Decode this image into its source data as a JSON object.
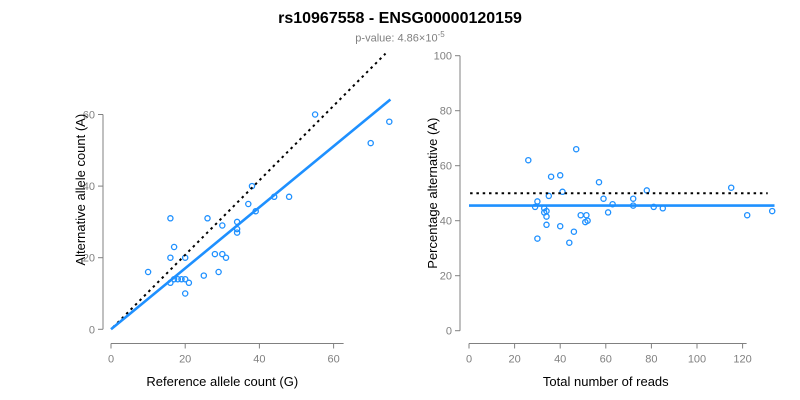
{
  "header": {
    "title": "rs10967558 - ENSG00000120159",
    "pvalue_prefix": "p-value: 4.86×10",
    "pvalue_exponent": "-5"
  },
  "colors": {
    "point_blue": "#1e90ff",
    "fit_line_blue": "#1e90ff",
    "expected_line_black": "#000000",
    "axis_gray": "#808080",
    "tick_label_gray": "#808080",
    "axis_title_black": "#000000",
    "subtitle_gray": "#808080"
  },
  "chart_data": [
    {
      "type": "scatter",
      "name": "allele-count-plot",
      "xlabel": "Reference allele count (G)",
      "ylabel": "Alternative allele count (A)",
      "xlim": [
        0,
        76
      ],
      "ylim": [
        0,
        78
      ],
      "xticks": [
        0,
        20,
        40,
        60
      ],
      "yticks": [
        0,
        20,
        40,
        60
      ],
      "grid": false,
      "legend": "none",
      "points": [
        [
          55,
          60
        ],
        [
          75,
          58
        ],
        [
          70,
          52
        ],
        [
          38,
          40
        ],
        [
          44,
          37
        ],
        [
          48,
          37
        ],
        [
          37,
          35
        ],
        [
          39,
          33
        ],
        [
          16,
          31
        ],
        [
          26,
          31
        ],
        [
          34,
          30
        ],
        [
          30,
          29
        ],
        [
          34,
          28
        ],
        [
          34,
          27
        ],
        [
          17,
          23
        ],
        [
          28,
          21
        ],
        [
          30,
          21
        ],
        [
          31,
          20
        ],
        [
          16,
          20
        ],
        [
          20,
          20
        ],
        [
          10,
          16
        ],
        [
          29,
          16
        ],
        [
          25,
          15
        ],
        [
          17,
          14
        ],
        [
          18,
          14
        ],
        [
          19,
          14
        ],
        [
          20,
          14
        ],
        [
          16,
          13
        ],
        [
          21,
          13
        ],
        [
          20,
          10
        ]
      ],
      "lines": [
        {
          "name": "expected-line",
          "style": "dotted",
          "color": "#000000",
          "points": [
            [
              0.5,
              0.5
            ],
            [
              74,
              77
            ]
          ]
        },
        {
          "name": "fit-line",
          "style": "solid",
          "color": "#1e90ff",
          "points": [
            [
              0,
              0
            ],
            [
              75.3,
              64.2
            ]
          ]
        }
      ]
    },
    {
      "type": "scatter",
      "name": "percentage-plot",
      "xlabel": "Total number of reads",
      "ylabel": "Percentage alternative (A)",
      "xlim": [
        0,
        134
      ],
      "ylim": [
        0,
        100
      ],
      "xticks": [
        0,
        20,
        40,
        60,
        80,
        100,
        120
      ],
      "yticks": [
        0,
        20,
        40,
        60,
        80,
        100
      ],
      "grid": false,
      "legend": "none",
      "points": [
        [
          26,
          62
        ],
        [
          47,
          66
        ],
        [
          36,
          56
        ],
        [
          40,
          56.5
        ],
        [
          57,
          54
        ],
        [
          41,
          50.5
        ],
        [
          35,
          49
        ],
        [
          78,
          51
        ],
        [
          115,
          52
        ],
        [
          59,
          48
        ],
        [
          72,
          48
        ],
        [
          30,
          47
        ],
        [
          63,
          46
        ],
        [
          29,
          45
        ],
        [
          33,
          44.5
        ],
        [
          34,
          43.5
        ],
        [
          33,
          43
        ],
        [
          61,
          43
        ],
        [
          72,
          45.5
        ],
        [
          81,
          45
        ],
        [
          85,
          44.5
        ],
        [
          34,
          41.5
        ],
        [
          49,
          42
        ],
        [
          51.5,
          42
        ],
        [
          52,
          40
        ],
        [
          51,
          39.5
        ],
        [
          34,
          38.5
        ],
        [
          40,
          38
        ],
        [
          46,
          36
        ],
        [
          30,
          33.5
        ],
        [
          44,
          32
        ],
        [
          122,
          42
        ],
        [
          133,
          43.5
        ]
      ],
      "lines": [
        {
          "name": "expected-line",
          "style": "dotted",
          "color": "#000000",
          "points": [
            [
              0.5,
              50
            ],
            [
              131,
              50
            ]
          ]
        },
        {
          "name": "fit-line",
          "style": "solid",
          "color": "#1e90ff",
          "points": [
            [
              0,
              45.5
            ],
            [
              134,
              45.5
            ]
          ]
        }
      ]
    }
  ]
}
